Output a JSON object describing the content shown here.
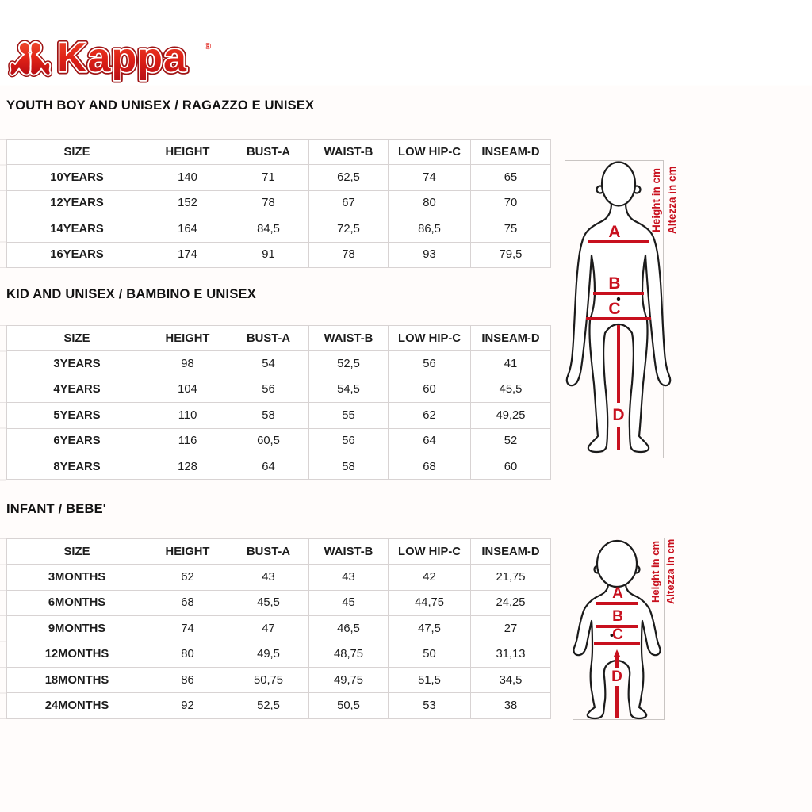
{
  "colors": {
    "accent-red": "#c8101e",
    "logo-red": "#e0231c",
    "border-gray": "#d8d3d3",
    "frame-gray": "#c9c5c3"
  },
  "logo": {
    "brand": "Kappa",
    "registered": "®"
  },
  "columns": [
    "SIZE",
    "HEIGHT",
    "BUST-A",
    "WAIST-B",
    "LOW HIP-C",
    "INSEAM-D"
  ],
  "sections": [
    {
      "title": "YOUTH BOY AND UNISEX / RAGAZZO E UNISEX",
      "rows": [
        [
          "10YEARS",
          "140",
          "71",
          "62,5",
          "74",
          "65"
        ],
        [
          "12YEARS",
          "152",
          "78",
          "67",
          "80",
          "70"
        ],
        [
          "14YEARS",
          "164",
          "84,5",
          "72,5",
          "86,5",
          "75"
        ],
        [
          "16YEARS",
          "174",
          "91",
          "78",
          "93",
          "79,5"
        ]
      ]
    },
    {
      "title": "KID AND UNISEX / BAMBINO E UNISEX",
      "rows": [
        [
          "3YEARS",
          "98",
          "54",
          "52,5",
          "56",
          "41"
        ],
        [
          "4YEARS",
          "104",
          "56",
          "54,5",
          "60",
          "45,5"
        ],
        [
          "5YEARS",
          "110",
          "58",
          "55",
          "62",
          "49,25"
        ],
        [
          "6YEARS",
          "116",
          "60,5",
          "56",
          "64",
          "52"
        ],
        [
          "8YEARS",
          "128",
          "64",
          "58",
          "68",
          "60"
        ]
      ]
    },
    {
      "title": "INFANT / BEBE'",
      "rows": [
        [
          "3MONTHS",
          "62",
          "43",
          "43",
          "42",
          "21,75"
        ],
        [
          "6MONTHS",
          "68",
          "45,5",
          "45",
          "44,75",
          "24,25"
        ],
        [
          "9MONTHS",
          "74",
          "47",
          "46,5",
          "47,5",
          "27"
        ],
        [
          "12MONTHS",
          "80",
          "49,5",
          "48,75",
          "50",
          "31,13"
        ],
        [
          "18MONTHS",
          "86",
          "50,75",
          "49,75",
          "51,5",
          "34,5"
        ],
        [
          "24MONTHS",
          "92",
          "52,5",
          "50,5",
          "53",
          "38"
        ]
      ]
    }
  ],
  "diagrams": {
    "youth": {
      "label_a": "A",
      "label_b": "B",
      "label_c": "C",
      "label_d": "D",
      "height_en": "Height in cm",
      "height_it": "Altezza in cm"
    },
    "infant": {
      "label_a": "A",
      "label_b": "B",
      "label_c": "C",
      "label_d": "D",
      "height_en": "Height in cm",
      "height_it": "Altezza in cm"
    }
  }
}
